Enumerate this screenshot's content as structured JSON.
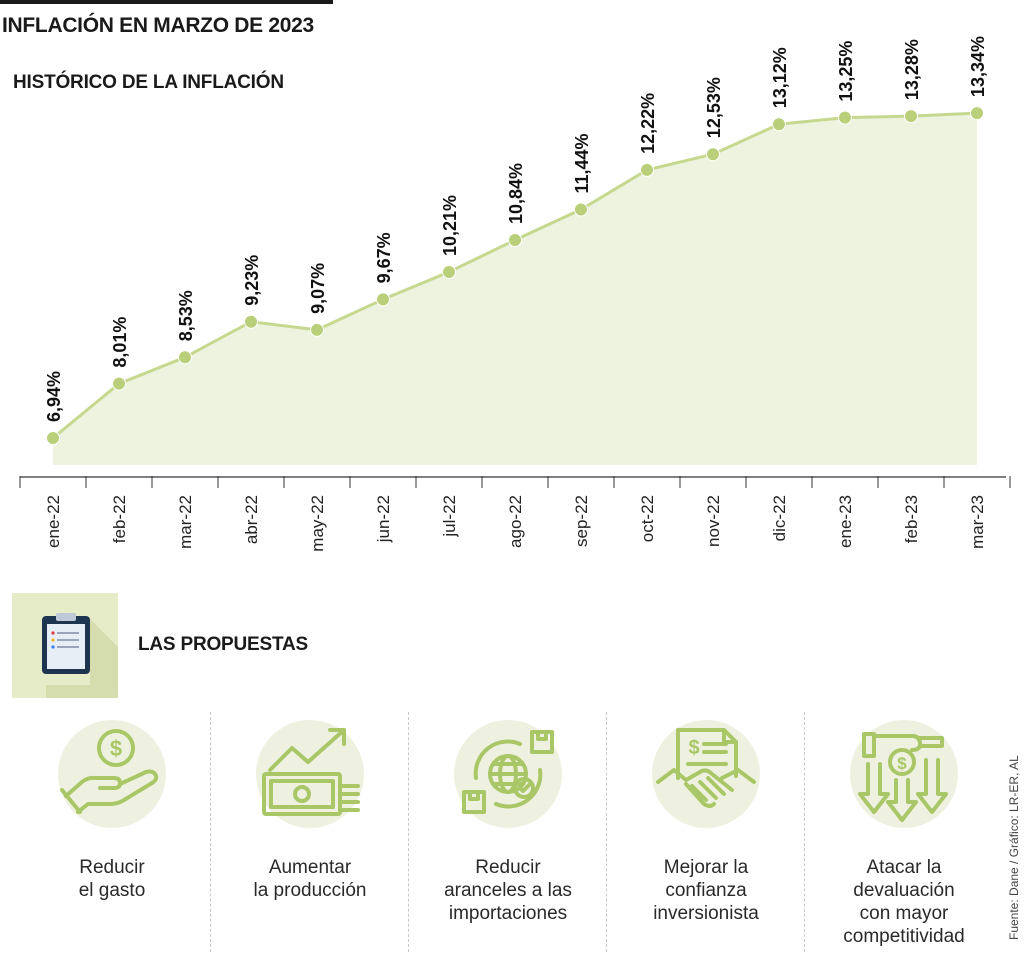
{
  "header": {
    "title": "INFLACIÓN EN MARZO DE 2023",
    "subtitle": "HISTÓRICO DE LA INFLACIÓN"
  },
  "colors": {
    "line": "#c5d88e",
    "marker": "#b9cf7a",
    "fill": "#eef3e0",
    "icon": "#a9c766",
    "badge": "#e6ebc8"
  },
  "chart_data": {
    "type": "line",
    "categories": [
      "ene-22",
      "feb-22",
      "mar-22",
      "abr-22",
      "may-22",
      "jun-22",
      "jul-22",
      "ago-22",
      "sep-22",
      "oct-22",
      "nov-22",
      "dic-22",
      "ene-23",
      "feb-23",
      "mar-23"
    ],
    "values": [
      6.94,
      8.01,
      8.53,
      9.23,
      9.07,
      9.67,
      10.21,
      10.84,
      11.44,
      12.22,
      12.53,
      13.12,
      13.25,
      13.28,
      13.34
    ],
    "data_labels": [
      "6,94%",
      "8,01%",
      "8,53%",
      "9,23%",
      "9,07%",
      "9,67%",
      "10,21%",
      "10,84%",
      "11,44%",
      "12,22%",
      "12,53%",
      "13,12%",
      "13,25%",
      "13,28%",
      "13,34%"
    ],
    "title": "HISTÓRICO DE LA INFLACIÓN",
    "xlabel": "",
    "ylabel": "",
    "grid": false,
    "area_fill": true
  },
  "proposals": {
    "title": "LAS PROPUESTAS",
    "badge_icon": "clipboard-icon",
    "items": [
      {
        "label": "Reducir\nel gasto",
        "icon": "hand-coin-icon"
      },
      {
        "label": "Aumentar\nla producción",
        "icon": "money-growth-icon"
      },
      {
        "label": "Reducir\naranceles a las\nimportaciones",
        "icon": "global-trade-icon"
      },
      {
        "label": "Mejorar la\nconfianza\ninversionista",
        "icon": "handshake-icon"
      },
      {
        "label": "Atacar la\ndevaluación\ncon mayor\ncompetitividad",
        "icon": "devaluation-icon"
      }
    ]
  },
  "source": "Fuente: Dane / Gráfico: LR-ER, AL"
}
